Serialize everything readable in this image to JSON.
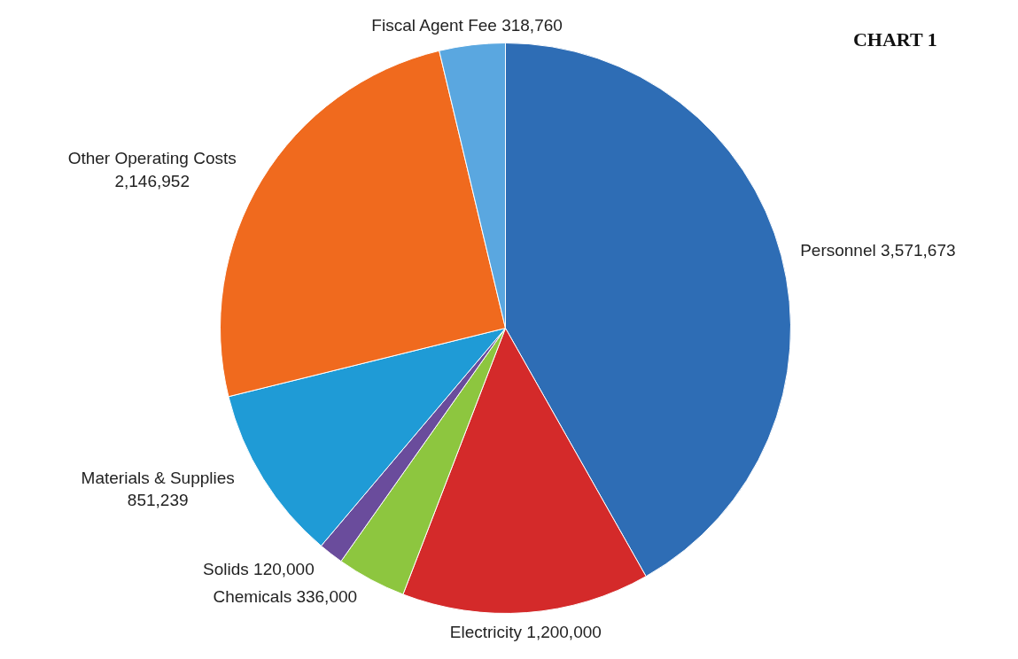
{
  "chart_data": {
    "type": "pie",
    "title": "CHART 1",
    "categories": [
      "Personnel",
      "Electricity",
      "Chemicals",
      "Solids",
      "Materials & Supplies",
      "Other Operating Costs",
      "Fiscal Agent Fee"
    ],
    "values": [
      3571673,
      1200000,
      336000,
      120000,
      851239,
      2146952,
      318760
    ],
    "colors": [
      "#2e6db5",
      "#d42a2a",
      "#8dc63f",
      "#6a4c9c",
      "#1f9bd6",
      "#f06a1e",
      "#5aa7e0"
    ],
    "value_labels": [
      "3,571,673",
      "1,200,000",
      "336,000",
      "120,000",
      "851,239",
      "2,146,952",
      "318,760"
    ],
    "legend": false
  }
}
